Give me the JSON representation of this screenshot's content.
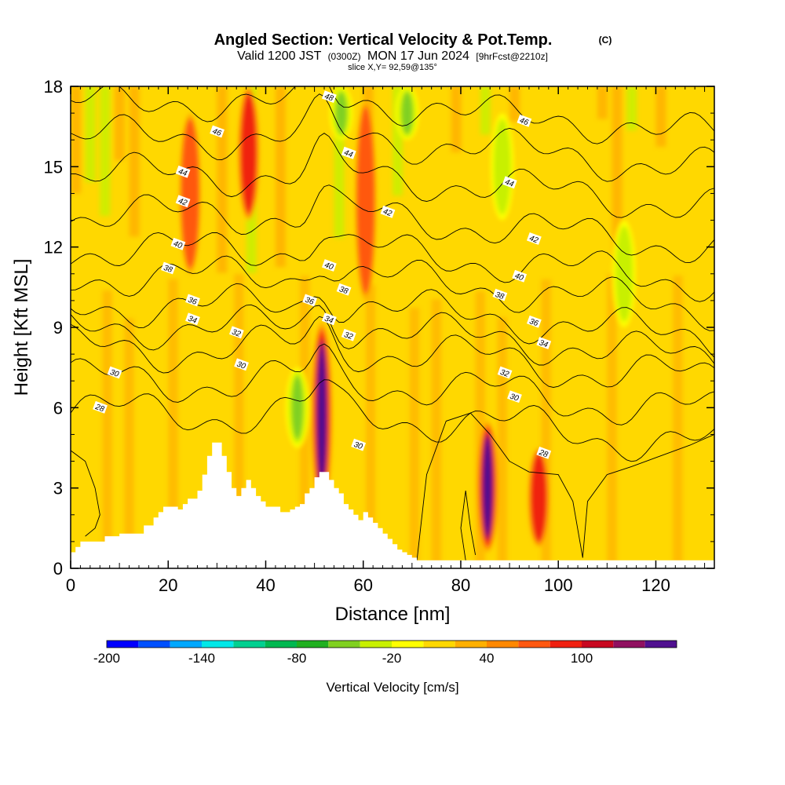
{
  "header": {
    "title_main": "Angled Section: Vertical Velocity & Pot.Temp.",
    "title_copyright": "(C)",
    "valid_prefix": "Valid 1200 JST",
    "valid_z": "(0300Z)",
    "valid_date": "MON 17 Jun 2024",
    "valid_fcst": "[9hrFcst@2210z]",
    "slice": "slice X,Y= 92,59@135°"
  },
  "chart_data": {
    "type": "heatmap",
    "xlabel": "Distance [nm]",
    "ylabel": "Height [Kft MSL]",
    "xlim": [
      0,
      132
    ],
    "ylim": [
      0,
      18
    ],
    "x_ticks": [
      "0",
      "20",
      "40",
      "60",
      "80",
      "100",
      "120"
    ],
    "x_tick_values": [
      0,
      20,
      40,
      60,
      80,
      100,
      120
    ],
    "y_ticks": [
      "0",
      "3",
      "6",
      "9",
      "12",
      "15",
      "18"
    ],
    "y_tick_values": [
      0,
      3,
      6,
      9,
      12,
      15,
      18
    ],
    "colorbar": {
      "label": "Vertical Velocity [cm/s]",
      "tick_labels": [
        "-200",
        "-140",
        "-80",
        "-20",
        "40",
        "100"
      ],
      "tick_values": [
        -200,
        -140,
        -80,
        -20,
        40,
        100
      ],
      "bins": [
        {
          "from": -200,
          "to": -180,
          "color": "#0000ff"
        },
        {
          "from": -180,
          "to": -160,
          "color": "#0050ff"
        },
        {
          "from": -160,
          "to": -140,
          "color": "#00a8ff"
        },
        {
          "from": -140,
          "to": -120,
          "color": "#00e8e8"
        },
        {
          "from": -120,
          "to": -100,
          "color": "#00d090"
        },
        {
          "from": -100,
          "to": -80,
          "color": "#00b850"
        },
        {
          "from": -80,
          "to": -60,
          "color": "#20b020"
        },
        {
          "from": -60,
          "to": -40,
          "color": "#80d020"
        },
        {
          "from": -40,
          "to": -20,
          "color": "#c8f000"
        },
        {
          "from": -20,
          "to": 0,
          "color": "#ffff00"
        },
        {
          "from": 0,
          "to": 20,
          "color": "#ffd800"
        },
        {
          "from": 20,
          "to": 40,
          "color": "#ffb000"
        },
        {
          "from": 40,
          "to": 60,
          "color": "#ff8800"
        },
        {
          "from": 60,
          "to": 80,
          "color": "#ff5810"
        },
        {
          "from": 80,
          "to": 100,
          "color": "#f02010"
        },
        {
          "from": 100,
          "to": 120,
          "color": "#c80820"
        },
        {
          "from": 120,
          "to": 140,
          "color": "#901060"
        },
        {
          "from": 140,
          "to": 160,
          "color": "#501090"
        }
      ]
    },
    "features": [
      {
        "kind": "updraft",
        "x": 51.5,
        "z_bottom": 2.2,
        "z_top": 9.2,
        "peak": 150
      },
      {
        "kind": "updraft",
        "x": 85.5,
        "z_bottom": 0.6,
        "z_top": 5.5,
        "peak": 160
      },
      {
        "kind": "updraft",
        "x": 96.0,
        "z_bottom": 0.8,
        "z_top": 4.5,
        "peak": 110
      },
      {
        "kind": "updraft",
        "x": 36.5,
        "z_bottom": 13.0,
        "z_top": 18.0,
        "peak": 100
      },
      {
        "kind": "updraft",
        "x": 24.5,
        "z_bottom": 11.0,
        "z_top": 17.0,
        "peak": 80
      },
      {
        "kind": "updraft",
        "x": 60.5,
        "z_bottom": 10.0,
        "z_top": 17.5,
        "peak": 80
      },
      {
        "kind": "downdraft",
        "x": 46.5,
        "z_bottom": 4.5,
        "z_top": 7.5,
        "peak": -60
      },
      {
        "kind": "downdraft",
        "x": 55.5,
        "z_bottom": 16.0,
        "z_top": 18.0,
        "peak": -60
      },
      {
        "kind": "downdraft",
        "x": 69.0,
        "z_bottom": 16.0,
        "z_top": 18.0,
        "peak": -60
      },
      {
        "kind": "downdraft",
        "x": 88.5,
        "z_bottom": 13.0,
        "z_top": 17.0,
        "peak": -50
      },
      {
        "kind": "downdraft",
        "x": 113.5,
        "z_bottom": 9.0,
        "z_top": 13.0,
        "peak": -40
      }
    ],
    "terrain": {
      "x": [
        0,
        1,
        2,
        5,
        7,
        10,
        14,
        15,
        17,
        18,
        19,
        21,
        22,
        23,
        24,
        26,
        27,
        28,
        29,
        30,
        31,
        32,
        33,
        34,
        35,
        36,
        37,
        38,
        39,
        40,
        42,
        43,
        44,
        45,
        46,
        47,
        48,
        49,
        50,
        51,
        52,
        53,
        54,
        55,
        56,
        57,
        58,
        59,
        60,
        61,
        62,
        63,
        64,
        65,
        66,
        67,
        68,
        69,
        70,
        71,
        132
      ],
      "z": [
        0.6,
        0.8,
        1.0,
        1.0,
        1.2,
        1.3,
        1.3,
        1.6,
        1.9,
        2.1,
        2.3,
        2.3,
        2.2,
        2.4,
        2.6,
        2.9,
        3.5,
        4.2,
        4.7,
        4.7,
        4.2,
        3.6,
        3.0,
        2.7,
        3.0,
        3.3,
        3.0,
        2.7,
        2.5,
        2.3,
        2.3,
        2.1,
        2.1,
        2.2,
        2.3,
        2.4,
        2.8,
        3.0,
        3.4,
        3.6,
        3.6,
        3.3,
        3.0,
        2.8,
        2.4,
        2.2,
        2.0,
        1.8,
        2.1,
        1.9,
        1.7,
        1.5,
        1.3,
        1.1,
        0.9,
        0.7,
        0.6,
        0.5,
        0.4,
        0.3,
        0.3
      ]
    },
    "theta_contours": [
      {
        "label": "28",
        "label_x": 6,
        "label_z": 6.0,
        "kind": "wave",
        "base": 5.8,
        "amp": 0.6
      },
      {
        "label": "30",
        "label_x": 9,
        "label_z": 7.3,
        "kind": "wave",
        "base": 7.0,
        "amp": 0.6
      },
      {
        "label": "32",
        "label_x": 34,
        "label_z": 8.8,
        "kind": "wave",
        "base": 8.2,
        "amp": 0.6
      },
      {
        "label": "34",
        "label_x": 25,
        "label_z": 9.3,
        "kind": "wave",
        "base": 9.0,
        "amp": 0.5
      },
      {
        "label": "36",
        "label_x": 25,
        "label_z": 10.0,
        "kind": "wave",
        "base": 9.8,
        "amp": 0.5
      },
      {
        "label": "38",
        "label_x": 20,
        "label_z": 11.2,
        "kind": "wave",
        "base": 10.9,
        "amp": 0.5
      },
      {
        "label": "40",
        "label_x": 22,
        "label_z": 12.1,
        "kind": "wave",
        "base": 11.9,
        "amp": 0.5
      },
      {
        "label": "42",
        "label_x": 23,
        "label_z": 13.7,
        "kind": "wave",
        "base": 13.2,
        "amp": 0.5
      },
      {
        "label": "44",
        "label_x": 23,
        "label_z": 14.8,
        "kind": "wave",
        "base": 14.7,
        "amp": 0.5
      },
      {
        "label": "46",
        "label_x": 30,
        "label_z": 16.3,
        "kind": "wave",
        "base": 16.1,
        "amp": 0.5
      },
      {
        "label": "48",
        "label_x": 53,
        "label_z": 17.6,
        "kind": "wave",
        "base": 17.4,
        "amp": 0.4
      }
    ],
    "extra_contour_labels": [
      {
        "label": "44",
        "x": 57,
        "z": 15.5
      },
      {
        "label": "46",
        "x": 93,
        "z": 16.7
      },
      {
        "label": "44",
        "x": 90,
        "z": 14.4
      },
      {
        "label": "42",
        "x": 65,
        "z": 13.3
      },
      {
        "label": "42",
        "x": 95,
        "z": 12.3
      },
      {
        "label": "40",
        "x": 53,
        "z": 11.3
      },
      {
        "label": "40",
        "x": 92,
        "z": 10.9
      },
      {
        "label": "38",
        "x": 56,
        "z": 10.4
      },
      {
        "label": "38",
        "x": 88,
        "z": 10.2
      },
      {
        "label": "36",
        "x": 49,
        "z": 10.0
      },
      {
        "label": "36",
        "x": 95,
        "z": 9.2
      },
      {
        "label": "34",
        "x": 53,
        "z": 9.3
      },
      {
        "label": "34",
        "x": 97,
        "z": 8.4
      },
      {
        "label": "32",
        "x": 57,
        "z": 8.7
      },
      {
        "label": "32",
        "x": 89,
        "z": 7.3
      },
      {
        "label": "30",
        "x": 35,
        "z": 7.6
      },
      {
        "label": "30",
        "x": 91,
        "z": 6.4
      },
      {
        "label": "30",
        "x": 59,
        "z": 4.6
      },
      {
        "label": "28",
        "x": 97,
        "z": 4.3
      }
    ],
    "low_contours": [
      {
        "label": "",
        "points": [
          [
            0,
            4.4
          ],
          [
            3,
            4.0
          ],
          [
            5,
            3.0
          ],
          [
            6,
            2.0
          ],
          [
            5,
            1.5
          ],
          [
            3,
            1.2
          ]
        ]
      },
      {
        "label": "",
        "points": [
          [
            81,
            0.3
          ],
          [
            80,
            1.5
          ],
          [
            81,
            2.9
          ],
          [
            82,
            1.5
          ],
          [
            83,
            0.5
          ]
        ]
      },
      {
        "label": "",
        "points": [
          [
            71,
            0.3
          ],
          [
            73,
            3.5
          ],
          [
            77,
            5.5
          ],
          [
            82,
            5.8
          ],
          [
            86,
            5.0
          ],
          [
            90,
            4.0
          ],
          [
            94,
            3.6
          ],
          [
            100,
            3.5
          ],
          [
            103,
            2.5
          ],
          [
            105,
            0.4
          ]
        ]
      },
      {
        "label": "",
        "points": [
          [
            105,
            0.4
          ],
          [
            106,
            2.5
          ],
          [
            110,
            3.5
          ],
          [
            115,
            3.8
          ],
          [
            121,
            4.2
          ],
          [
            127,
            4.6
          ],
          [
            132,
            5.0
          ]
        ]
      }
    ]
  }
}
